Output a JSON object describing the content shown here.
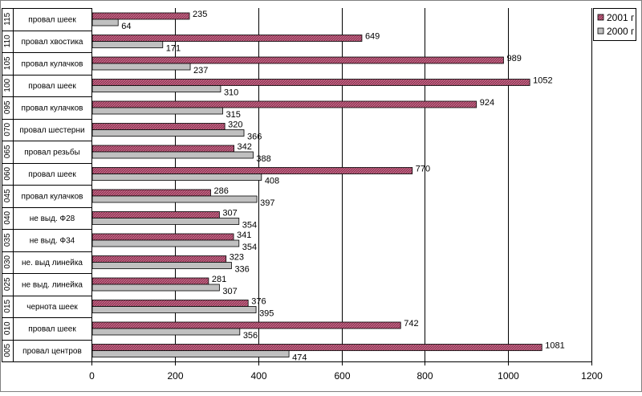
{
  "chart_data": {
    "type": "bar",
    "orientation": "horizontal",
    "title": "",
    "xlabel": "",
    "ylabel": "",
    "xlim": [
      0,
      1200
    ],
    "x_ticks": [
      0,
      200,
      400,
      600,
      800,
      1000,
      1200
    ],
    "grid": true,
    "legend_position": "top-right",
    "categories": [
      {
        "code": "115",
        "label": "провал шеек"
      },
      {
        "code": "110",
        "label": "провал хвостика"
      },
      {
        "code": "105",
        "label": "провал кулачков"
      },
      {
        "code": "100",
        "label": "провал шеек"
      },
      {
        "code": "095",
        "label": "провал кулачков"
      },
      {
        "code": "070",
        "label": "провал шестерни"
      },
      {
        "code": "065",
        "label": "провал резьбы"
      },
      {
        "code": "060",
        "label": "провал шеек"
      },
      {
        "code": "045",
        "label": "провал кулачков"
      },
      {
        "code": "040",
        "label": "не выд. Ф28"
      },
      {
        "code": "035",
        "label": "не выд. Ф34"
      },
      {
        "code": "030",
        "label": "не. выд линейка"
      },
      {
        "code": "025",
        "label": "не выд. линейка"
      },
      {
        "code": "015",
        "label": "чернота шеек"
      },
      {
        "code": "010",
        "label": "провал шеек"
      },
      {
        "code": "005",
        "label": "провал центров"
      }
    ],
    "series": [
      {
        "name": "2001 г",
        "color": "#993355",
        "values": [
          235,
          649,
          989,
          1052,
          924,
          320,
          342,
          770,
          286,
          307,
          341,
          323,
          281,
          376,
          742,
          1081
        ]
      },
      {
        "name": "2000 г",
        "color": "#c0c0c0",
        "values": [
          64,
          171,
          237,
          310,
          315,
          366,
          388,
          408,
          397,
          354,
          354,
          336,
          307,
          395,
          356,
          474
        ]
      }
    ]
  }
}
